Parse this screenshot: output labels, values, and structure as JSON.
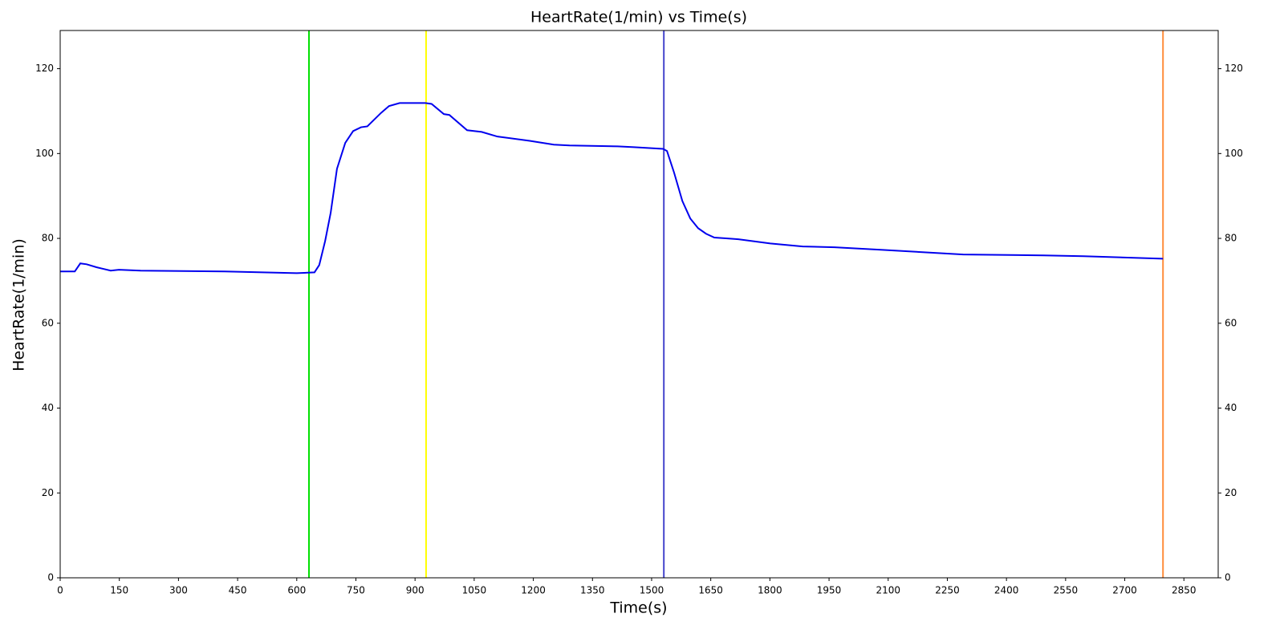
{
  "chart_data": {
    "type": "line",
    "title": "HeartRate(1/min) vs Time(s)",
    "x_label": "Time(s)",
    "y_label": "HeartRate(1/min)",
    "x": [
      0,
      37,
      51,
      67,
      92,
      128,
      149,
      204,
      417,
      600,
      645,
      657,
      672,
      686,
      702,
      723,
      743,
      763,
      779,
      814,
      834,
      861,
      926,
      942,
      973,
      987,
      1032,
      1069,
      1109,
      1191,
      1252,
      1292,
      1414,
      1455,
      1529,
      1539,
      1557,
      1578,
      1598,
      1618,
      1638,
      1659,
      1689,
      1720,
      1801,
      1883,
      1964,
      2086,
      2290,
      2494,
      2595,
      2797
    ],
    "series": [
      {
        "name": "HeartRate",
        "color": "#0000ee",
        "values": [
          72.2,
          72.2,
          74.1,
          73.9,
          73.2,
          72.4,
          72.6,
          72.4,
          72.2,
          71.8,
          72.0,
          73.7,
          79.4,
          86,
          96.4,
          102.5,
          105.3,
          106.2,
          106.4,
          109.6,
          111.2,
          111.9,
          111.9,
          111.7,
          109.3,
          109.1,
          105.5,
          105.1,
          104,
          103,
          102.1,
          101.9,
          101.7,
          101.5,
          101.1,
          100.6,
          95.5,
          88.8,
          84.7,
          82.4,
          81.1,
          80.2,
          80,
          79.8,
          78.8,
          78.1,
          77.9,
          77.3,
          76.2,
          76,
          75.8,
          75.2
        ]
      }
    ],
    "vlines": [
      {
        "x": 631,
        "color": "#00e000"
      },
      {
        "x": 928,
        "color": "#ffff00"
      },
      {
        "x": 1531,
        "color": "#4444cc"
      },
      {
        "x": 2797,
        "color": "#ff8c3a"
      }
    ],
    "xlim": [
      0,
      2937
    ],
    "xticks": [
      0,
      150,
      300,
      450,
      600,
      750,
      900,
      1050,
      1200,
      1350,
      1500,
      1650,
      1800,
      1950,
      2100,
      2250,
      2400,
      2550,
      2700,
      2850
    ],
    "ylim": [
      0,
      129
    ],
    "yticks": [
      0,
      20,
      40,
      60,
      80,
      100,
      120
    ],
    "y2lim": [
      0,
      129
    ],
    "y2ticks": [
      0,
      20,
      40,
      60,
      80,
      100,
      120
    ],
    "grid": false
  }
}
